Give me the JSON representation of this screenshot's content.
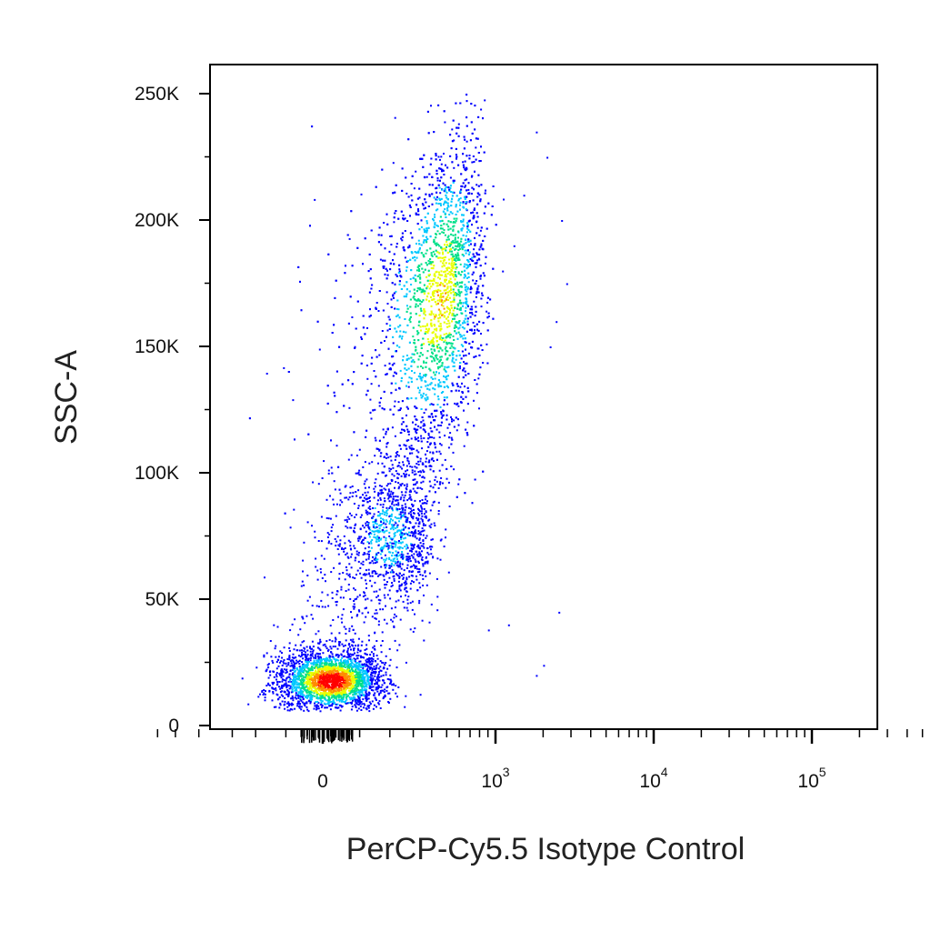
{
  "chart_data": {
    "type": "scatter",
    "subtype": "flow-cytometry-density-dot-plot",
    "title": "",
    "xlabel": "PerCP-Cy5.5 Isotype Control",
    "ylabel": "SSC-A",
    "x_scale": "biexponential",
    "y_scale": "linear",
    "xlim": [
      -200,
      200000
    ],
    "ylim": [
      0,
      262144
    ],
    "x_ticks": [
      {
        "value": 0,
        "label": "0"
      },
      {
        "value": 1000,
        "label": "10",
        "exp": "3"
      },
      {
        "value": 10000,
        "label": "10",
        "exp": "4"
      },
      {
        "value": 100000,
        "label": "10",
        "exp": "5"
      }
    ],
    "y_ticks": [
      {
        "value": 0,
        "label": "0"
      },
      {
        "value": 50000,
        "label": "50K"
      },
      {
        "value": 100000,
        "label": "100K"
      },
      {
        "value": 150000,
        "label": "150K"
      },
      {
        "value": 200000,
        "label": "200K"
      },
      {
        "value": 250000,
        "label": "250K"
      }
    ],
    "grid": false,
    "legend": "none",
    "color_scale": [
      "#0000ff",
      "#00c8ff",
      "#00e08a",
      "#e8ff00",
      "#ff8c00",
      "#ff0000"
    ],
    "populations": [
      {
        "x_center": 20,
        "x_spread": 70,
        "y_center": 18000,
        "y_spread": 6000,
        "count": 2600,
        "peak_density": 1.0
      },
      {
        "x_center": 200,
        "x_spread": 90,
        "y_center": 75000,
        "y_spread": 14000,
        "count": 900,
        "peak_density": 0.35
      },
      {
        "x_center": 450,
        "x_spread": 170,
        "y_center": 170000,
        "y_spread": 32000,
        "count": 3400,
        "peak_density": 0.7
      }
    ],
    "outliers": [
      {
        "x": 1800,
        "y": 235000
      },
      {
        "x": 2100,
        "y": 225000
      },
      {
        "x": 2600,
        "y": 200000
      },
      {
        "x": 2800,
        "y": 175000
      },
      {
        "x": 2400,
        "y": 160000
      },
      {
        "x": 2200,
        "y": 150000
      },
      {
        "x": 1300,
        "y": 190000
      },
      {
        "x": 1500,
        "y": 210000
      },
      {
        "x": 2500,
        "y": 45000
      },
      {
        "x": 1200,
        "y": 40000
      },
      {
        "x": 1800,
        "y": 20000
      },
      {
        "x": 2000,
        "y": 24000
      },
      {
        "x": 900,
        "y": 38000
      },
      {
        "x": 1100,
        "y": 180000
      }
    ]
  }
}
